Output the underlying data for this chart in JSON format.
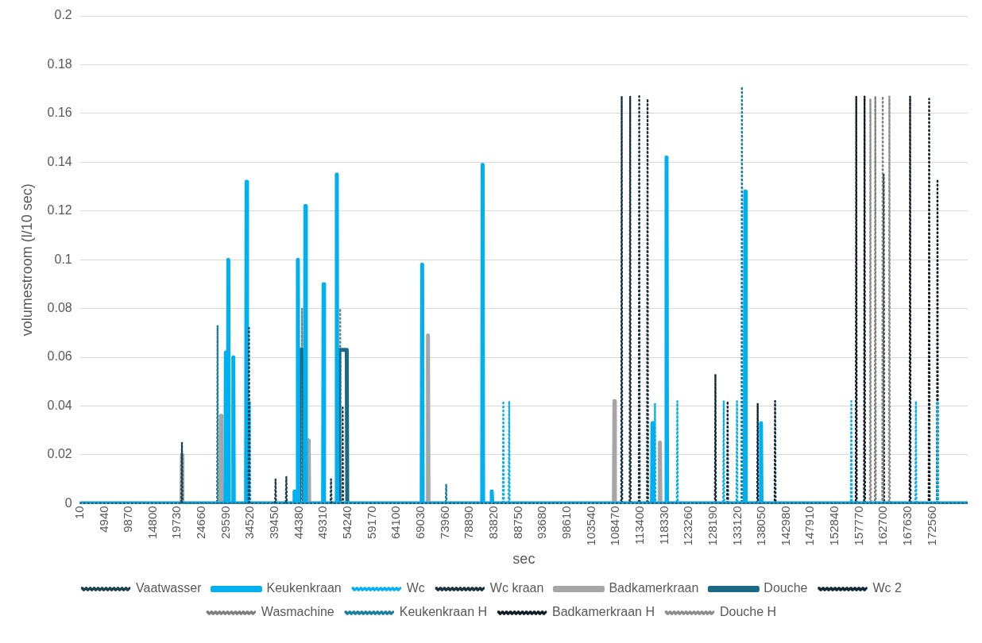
{
  "chart_data": {
    "type": "line",
    "xlabel": "sec",
    "ylabel": "volumestroom (l/10 sec)",
    "xlim": [
      10,
      179700
    ],
    "xticks": [
      10,
      4940,
      9870,
      14800,
      19730,
      24660,
      29590,
      34520,
      39450,
      44380,
      49310,
      54240,
      59170,
      64100,
      69030,
      73960,
      78890,
      83820,
      88750,
      93680,
      98610,
      103540,
      108470,
      113400,
      118330,
      123260,
      128190,
      133120,
      138050,
      142980,
      147910,
      152840,
      157770,
      162700,
      167630,
      172560
    ],
    "ylim": [
      0,
      0.2
    ],
    "yticks": [
      0,
      0.02,
      0.04,
      0.06,
      0.08,
      0.1,
      0.12,
      0.14,
      0.16,
      0.18,
      0.2
    ],
    "grid": "y",
    "legend": "bottom",
    "marker": "none",
    "series": [
      {
        "name": "Vaatwasser",
        "color": "#1c3f4f",
        "line_style": "dotted",
        "x": [
          10,
          20540,
          20640,
          20740,
          34120,
          34220,
          34320,
          39490,
          39590,
          39690,
          41670,
          41770,
          41870,
          50720,
          50820,
          50920,
          53070,
          53170,
          53270,
          179700
        ],
        "values": [
          0,
          0,
          0.025,
          0,
          0,
          0.072,
          0,
          0,
          0.01,
          0,
          0,
          0.011,
          0,
          0,
          0.01,
          0,
          0,
          0.04,
          0,
          0
        ]
      },
      {
        "name": "Keukenkraan",
        "color": "#00b0f0",
        "line_style": "solid",
        "x": [
          10,
          29425,
          29525,
          29625,
          29930,
          30030,
          30130,
          30935,
          31035,
          31135,
          33617,
          33717,
          33817,
          43340,
          43440,
          43540,
          44010,
          44110,
          44210,
          45524,
          45624,
          45724,
          49210,
          49310,
          49410,
          51890,
          51990,
          52090,
          69170,
          69270,
          69370,
          81410,
          81510,
          81610,
          83260,
          83360,
          83460,
          115790,
          115890,
          115990,
          118640,
          118740,
          118840,
          134570,
          134670,
          134770,
          137760,
          137860,
          137960,
          179700
        ],
        "values": [
          0,
          0,
          0.062,
          0,
          0,
          0.1,
          0,
          0,
          0.06,
          0,
          0,
          0.132,
          0,
          0,
          0.005,
          0,
          0,
          0.1,
          0,
          0,
          0.122,
          0,
          0,
          0.09,
          0,
          0,
          0.135,
          0,
          0,
          0.098,
          0,
          0,
          0.139,
          0,
          0,
          0.005,
          0,
          0,
          0.033,
          0,
          0,
          0.142,
          0,
          0,
          0.128,
          0,
          0,
          0.033,
          0,
          0
        ]
      },
      {
        "name": "Wc",
        "color": "#00b0f0",
        "line_style": "dotted",
        "x": [
          10,
          34290,
          34390,
          34490,
          85600,
          85700,
          85800,
          86780,
          86880,
          86980,
          116300,
          116400,
          116500,
          120820,
          120920,
          121020,
          130210,
          130310,
          130410,
          132900,
          133000,
          133100,
          156040,
          156140,
          156240,
          169120,
          169220,
          169320,
          173480,
          173580,
          173680,
          179700
        ],
        "values": [
          0,
          0,
          0.042,
          0,
          0,
          0.042,
          0,
          0,
          0.042,
          0,
          0,
          0.041,
          0,
          0,
          0.042,
          0,
          0,
          0.042,
          0,
          0,
          0.042,
          0,
          0,
          0.042,
          0,
          0,
          0.042,
          0,
          0,
          0.042,
          0,
          0
        ]
      },
      {
        "name": "Wc kraan",
        "color": "#17303d",
        "line_style": "dotted",
        "x": [
          10,
          109560,
          109660,
          109760,
          111270,
          111370,
          111470,
          113110,
          113210,
          113310,
          114790,
          114890,
          114990,
          179700
        ],
        "values": [
          0,
          0,
          0.167,
          0,
          0,
          0.167,
          0,
          0,
          0.167,
          0,
          0,
          0.166,
          0,
          0
        ]
      },
      {
        "name": "Badkamerkraan",
        "color": "#a6a6a6",
        "line_style": "solid",
        "x": [
          10,
          20540,
          20640,
          20740,
          28420,
          28520,
          28620,
          46200,
          46300,
          46400,
          70350,
          70450,
          70550,
          108080,
          108180,
          108280,
          117300,
          117400,
          117500,
          179700
        ],
        "values": [
          0,
          0,
          0.02,
          0,
          0,
          0.036,
          0,
          0,
          0.026,
          0,
          0,
          0.069,
          0,
          0,
          0.042,
          0,
          0,
          0.025,
          0,
          0
        ]
      },
      {
        "name": "Douche",
        "color": "#1a6985",
        "line_style": "solid",
        "x": [
          10,
          44400,
          44500,
          45300,
          45400,
          52400,
          52500,
          54000,
          54100,
          179700
        ],
        "values": [
          0,
          0,
          0.063,
          0.063,
          0,
          0,
          0.063,
          0.063,
          0,
          0
        ]
      },
      {
        "name": "Wc 2",
        "color": "#0d2633",
        "line_style": "dotted",
        "x": [
          10,
          128530,
          128630,
          128730,
          131000,
          131100,
          131200,
          137090,
          137190,
          137290,
          140610,
          140710,
          140810,
          179700
        ],
        "values": [
          0,
          0,
          0.053,
          0,
          0,
          0.042,
          0,
          0,
          0.041,
          0,
          0,
          0.042,
          0,
          0
        ]
      },
      {
        "name": "Wasmachine",
        "color": "#7f7f7f",
        "line_style": "dotted",
        "x": [
          10,
          44850,
          44950,
          45050,
          52570,
          52670,
          52770,
          160900,
          161000,
          161100,
          162400,
          162500,
          162600,
          179700
        ],
        "values": [
          0,
          0,
          0.08,
          0,
          0,
          0.08,
          0,
          0,
          0.167,
          0,
          0,
          0.167,
          0,
          0
        ]
      },
      {
        "name": "Keukenkraan H",
        "color": "#1a7f9c",
        "line_style": "dotted",
        "x": [
          10,
          27750,
          27850,
          27950,
          74030,
          74130,
          74230,
          133900,
          134000,
          134100,
          179700
        ],
        "values": [
          0,
          0,
          0.073,
          0,
          0,
          0.008,
          0,
          0,
          0.171,
          0,
          0
        ]
      },
      {
        "name": "Badkamerkraan H",
        "color": "#101c24",
        "line_style": "dotted",
        "x": [
          10,
          157040,
          157140,
          157240,
          158720,
          158820,
          158920,
          162580,
          162680,
          162780,
          167940,
          168040,
          168140,
          171800,
          171900,
          172000,
          173480,
          173580,
          173680,
          179700
        ],
        "values": [
          0,
          0,
          0.167,
          0,
          0,
          0.167,
          0,
          0,
          0.135,
          0,
          0,
          0.167,
          0,
          0,
          0.166,
          0,
          0,
          0.133,
          0,
          0
        ]
      },
      {
        "name": "Douche H",
        "color": "#8c8c8c",
        "line_style": "dotted",
        "x": [
          10,
          159900,
          160000,
          160100,
          163750,
          163850,
          163950,
          179700
        ],
        "values": [
          0,
          0,
          0.166,
          0,
          0,
          0.167,
          0,
          0
        ]
      }
    ]
  }
}
